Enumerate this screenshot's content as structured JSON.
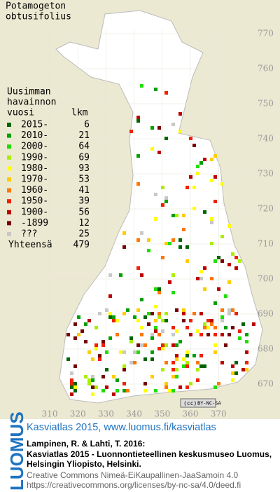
{
  "title_lines": [
    "Potamogeton",
    "obtusifolius"
  ],
  "legend": {
    "header_lines": [
      "Uusimman",
      "havainnon",
      "vuosi"
    ],
    "count_header": "lkm",
    "rows": [
      {
        "label": "2015-",
        "count": 6,
        "color": "#006400"
      },
      {
        "label": "2010-",
        "count": 21,
        "color": "#00a000"
      },
      {
        "label": "2000-",
        "count": 64,
        "color": "#22dd00"
      },
      {
        "label": "1990-",
        "count": 69,
        "color": "#aaee00"
      },
      {
        "label": "1980-",
        "count": 93,
        "color": "#ffff00"
      },
      {
        "label": "1970-",
        "count": 53,
        "color": "#ffcc00"
      },
      {
        "label": "1960-",
        "count": 41,
        "color": "#ff7700"
      },
      {
        "label": "1950-",
        "count": 39,
        "color": "#ee2200"
      },
      {
        "label": "1900-",
        "count": 56,
        "color": "#bb0000"
      },
      {
        "label": "-1899",
        "count": 12,
        "color": "#770000"
      },
      {
        "label": "???",
        "count": 25,
        "color": "#c8c8c8"
      }
    ],
    "total_label": "Yhteensä",
    "total": 479
  },
  "northing_labels": [
    770,
    760,
    750,
    740,
    730,
    720,
    710,
    700,
    690,
    680,
    670
  ],
  "easting_labels": [
    310,
    320,
    330,
    340,
    350,
    360,
    370
  ],
  "license_badge": "BY-NC-SA",
  "footer": {
    "logo": "LUOMUS",
    "link": "Kasviatlas 2015, www.luomus.fi/kasviatlas",
    "citation_lines": [
      "Lampinen, R. & Lahti, T. 2016:",
      "Kasviatlas 2015 - Luonnontieteellinen keskusmuseo Luomus,",
      "Helsingin Yliopisto, Helsinki."
    ],
    "license_lines": [
      "Creative Commons Nimeä-EiKaupallinen-JaaSamoin 4.0",
      "https://creativecommons.org/licenses/by-nc-sa/4.0/deed.fi"
    ]
  }
}
